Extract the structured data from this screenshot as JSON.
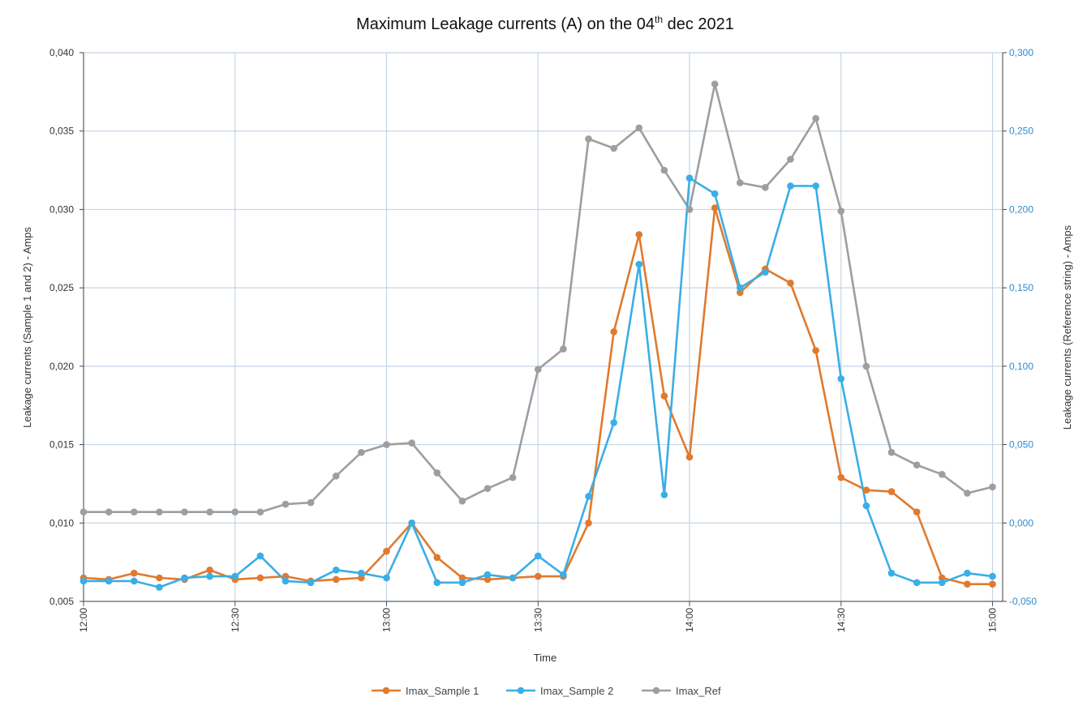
{
  "chart_data": {
    "type": "line",
    "title": "Maximum Leakage currents (A) on the 04",
    "title_sup": "th",
    "title_tail": " dec 2021",
    "xlabel": "Time",
    "ylabel_left": "Leakage currents (Sample 1 and 2) - Amps",
    "ylabel_right": "Leakage currents (Reference string) - Amps",
    "x_ticks": [
      "12:00",
      "12:30",
      "13:00",
      "13:30",
      "14:00",
      "14:30",
      "15:00"
    ],
    "x_range_minutes": [
      720,
      902
    ],
    "y_left_ticks": [
      "0,005",
      "0,010",
      "0,015",
      "0,020",
      "0,025",
      "0,030",
      "0,035",
      "0,040"
    ],
    "y_left_range": [
      0.005,
      0.04
    ],
    "y_right_ticks": [
      "-0,050",
      "0,000",
      "0,050",
      "0,100",
      "0,150",
      "0,200",
      "0,250",
      "0,300"
    ],
    "y_right_range": [
      -0.05,
      0.3
    ],
    "grid": true,
    "legend_position": "bottom",
    "colors": {
      "sample1": "#e07a2e",
      "sample2": "#3aaee6",
      "ref": "#9e9e9e",
      "grid": "#c5d5e8",
      "right_axis": "#2e8ccf"
    },
    "x": [
      "12:00",
      "12:05",
      "12:10",
      "12:15",
      "12:20",
      "12:25",
      "12:30",
      "12:35",
      "12:40",
      "12:45",
      "12:50",
      "12:55",
      "13:00",
      "13:05",
      "13:10",
      "13:15",
      "13:20",
      "13:25",
      "13:30",
      "13:35",
      "13:40",
      "13:45",
      "13:50",
      "13:55",
      "14:00",
      "14:05",
      "14:10",
      "14:15",
      "14:20",
      "14:25",
      "14:30",
      "14:35",
      "14:40",
      "14:45",
      "14:50",
      "14:55",
      "15:00"
    ],
    "series": [
      {
        "name": "Imax_Sample 1",
        "axis": "left",
        "color": "#e07a2e",
        "values": [
          0.0065,
          0.0064,
          0.0068,
          0.0065,
          0.0064,
          0.007,
          0.0064,
          0.0065,
          0.0066,
          0.0063,
          0.0064,
          0.0065,
          0.0082,
          0.01,
          0.0078,
          0.0065,
          0.0064,
          0.0065,
          0.0066,
          0.0066,
          0.01,
          0.0222,
          0.0284,
          0.0181,
          0.0142,
          0.0301,
          0.0247,
          0.0262,
          0.0253,
          0.021,
          0.0129,
          0.0121,
          0.012,
          0.0107,
          0.0065,
          0.0061,
          0.0061
        ]
      },
      {
        "name": "Imax_Sample 2",
        "axis": "left",
        "color": "#3aaee6",
        "values": [
          0.0063,
          0.0063,
          0.0063,
          0.0059,
          0.0065,
          0.0066,
          0.0066,
          0.0079,
          0.0063,
          0.0062,
          0.007,
          0.0068,
          0.0065,
          0.01,
          0.0062,
          0.0062,
          0.0067,
          0.0065,
          0.0079,
          0.0067,
          0.0117,
          0.0164,
          0.0265,
          0.0118,
          0.032,
          0.031,
          0.025,
          0.026,
          0.0315,
          0.0315,
          0.0192,
          0.0111,
          0.0068,
          0.0062,
          0.0062,
          0.0068,
          0.0066
        ]
      },
      {
        "name": "Imax_Ref",
        "axis": "right",
        "color": "#9e9e9e",
        "values": [
          0.007,
          0.007,
          0.007,
          0.007,
          0.007,
          0.007,
          0.007,
          0.007,
          0.012,
          0.013,
          0.03,
          0.045,
          0.05,
          0.051,
          0.032,
          0.014,
          0.022,
          0.029,
          0.098,
          0.111,
          0.245,
          0.239,
          0.252,
          0.225,
          0.2,
          0.28,
          0.217,
          0.214,
          0.232,
          0.258,
          0.199,
          0.1,
          0.045,
          0.037,
          0.031,
          0.019,
          0.023
        ]
      }
    ]
  }
}
